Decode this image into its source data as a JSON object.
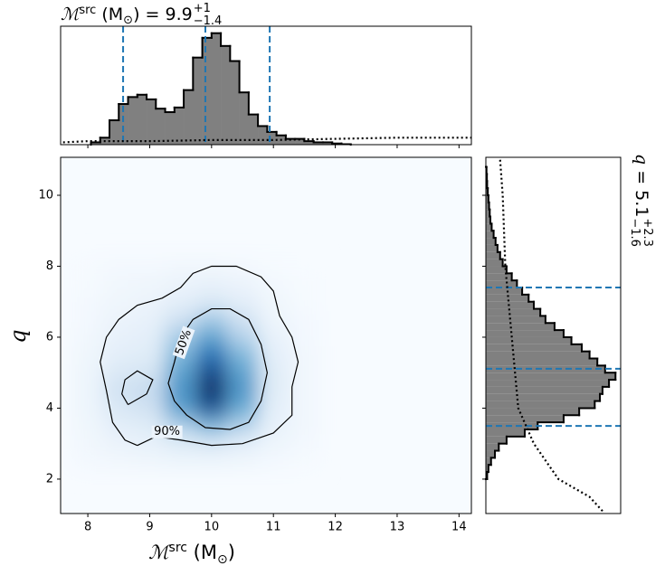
{
  "chart_data": [
    {
      "type": "heatmap",
      "xlabel": [
        "ℳ",
        "src",
        " (M",
        "⊙",
        ")"
      ],
      "ylabel": "q",
      "xlim": [
        7.56,
        14.2
      ],
      "ylim": [
        1.03,
        11.07
      ],
      "xticks": [
        8,
        9,
        10,
        11,
        12,
        13,
        14
      ],
      "yticks": [
        2,
        4,
        6,
        8,
        10
      ],
      "x": [
        8,
        8.5,
        9,
        9.5,
        10,
        10.5,
        11,
        11.5
      ],
      "y": [
        2.5,
        3,
        3.5,
        4,
        4.5,
        5,
        5.5,
        6,
        6.5,
        7,
        7.5,
        8
      ],
      "values": [
        [
          0.02,
          0.03,
          0.04,
          0.05,
          0.05,
          0.04,
          0.02,
          0.01
        ],
        [
          0.03,
          0.06,
          0.08,
          0.12,
          0.15,
          0.1,
          0.05,
          0.02
        ],
        [
          0.04,
          0.1,
          0.12,
          0.3,
          0.45,
          0.3,
          0.08,
          0.03
        ],
        [
          0.05,
          0.15,
          0.2,
          0.55,
          0.85,
          0.5,
          0.1,
          0.03
        ],
        [
          0.05,
          0.2,
          0.25,
          0.6,
          1.0,
          0.6,
          0.12,
          0.03
        ],
        [
          0.05,
          0.15,
          0.18,
          0.55,
          0.9,
          0.55,
          0.12,
          0.03
        ],
        [
          0.04,
          0.1,
          0.12,
          0.45,
          0.75,
          0.45,
          0.1,
          0.03
        ],
        [
          0.03,
          0.08,
          0.1,
          0.35,
          0.55,
          0.3,
          0.08,
          0.02
        ],
        [
          0.02,
          0.06,
          0.08,
          0.2,
          0.35,
          0.2,
          0.05,
          0.02
        ],
        [
          0.02,
          0.04,
          0.06,
          0.1,
          0.15,
          0.1,
          0.04,
          0.01
        ],
        [
          0.01,
          0.03,
          0.04,
          0.06,
          0.08,
          0.06,
          0.02,
          0.01
        ],
        [
          0.01,
          0.02,
          0.02,
          0.03,
          0.03,
          0.02,
          0.01,
          0
        ]
      ],
      "contours": [
        {
          "label": "90%",
          "paths": [
            {
              "x": [
                8.8,
                9.1,
                9.5,
                10.0,
                10.5,
                11.0,
                11.3,
                11.3,
                11.4,
                11.3,
                11.1,
                11.0,
                10.8,
                10.4,
                10.0,
                9.7,
                9.5,
                9.2,
                8.8,
                8.5,
                8.3,
                8.2,
                8.3,
                8.4,
                8.6,
                8.8
              ],
              "y": [
                2.95,
                3.2,
                3.1,
                2.95,
                3.0,
                3.3,
                3.8,
                4.6,
                5.3,
                6.0,
                6.6,
                7.3,
                7.7,
                8.0,
                8.0,
                7.8,
                7.4,
                7.1,
                6.9,
                6.5,
                6.0,
                5.3,
                4.5,
                3.6,
                3.1,
                2.95
              ]
            }
          ]
        },
        {
          "label": "50%",
          "paths": [
            {
              "x": [
                9.6,
                9.9,
                10.3,
                10.6,
                10.8,
                10.9,
                10.8,
                10.6,
                10.3,
                10.0,
                9.7,
                9.5,
                9.4,
                9.3,
                9.4,
                9.6
              ],
              "y": [
                3.8,
                3.45,
                3.4,
                3.6,
                4.2,
                5.0,
                5.8,
                6.5,
                6.8,
                6.8,
                6.5,
                6.0,
                5.3,
                4.7,
                4.2,
                3.8
              ]
            },
            {
              "x": [
                8.65,
                8.95,
                9.05,
                8.8,
                8.6,
                8.55,
                8.65
              ],
              "y": [
                4.1,
                4.4,
                4.8,
                5.05,
                4.8,
                4.4,
                4.1
              ]
            }
          ]
        }
      ]
    },
    {
      "type": "histogram",
      "title": [
        "ℳ",
        "src",
        " (M",
        "⊙",
        ") = 9.9",
        "+1",
        "−1.4"
      ],
      "color": "#808080",
      "xlim": [
        7.56,
        14.2
      ],
      "ylim": [
        0,
        1.02
      ],
      "xticks": [
        8,
        9,
        10,
        11,
        12,
        13,
        14
      ],
      "bins": [
        8.05,
        8.2,
        8.35,
        8.5,
        8.65,
        8.8,
        8.95,
        9.1,
        9.25,
        9.4,
        9.55,
        9.7,
        9.85,
        10.0,
        10.15,
        10.3,
        10.45,
        10.6,
        10.75,
        10.9,
        11.05,
        11.2,
        11.35,
        11.5,
        11.65,
        11.8,
        11.95,
        12.1,
        12.25
      ],
      "values": [
        0.02,
        0.06,
        0.21,
        0.35,
        0.41,
        0.43,
        0.39,
        0.31,
        0.28,
        0.32,
        0.47,
        0.75,
        0.92,
        0.96,
        0.85,
        0.72,
        0.45,
        0.26,
        0.16,
        0.11,
        0.08,
        0.05,
        0.05,
        0.03,
        0.02,
        0.02,
        0.01,
        0.004
      ],
      "quantiles": [
        8.57,
        9.9,
        10.94
      ],
      "prior": {
        "x": [
          7.6,
          8.0,
          9.0,
          10.0,
          11.0,
          12.0,
          13.0,
          14.2
        ],
        "values": [
          0.02,
          0.03,
          0.03,
          0.04,
          0.04,
          0.05,
          0.06,
          0.06
        ]
      }
    },
    {
      "type": "histogram",
      "orientation": "horizontal",
      "title": [
        "q",
        " = 5.1",
        "+2.3",
        "−1.6"
      ],
      "color": "#808080",
      "xlim": [
        0,
        1.04
      ],
      "ylim": [
        1.03,
        11.07
      ],
      "yticks": [
        2,
        4,
        6,
        8,
        10
      ],
      "bins": [
        2.0,
        2.2,
        2.4,
        2.6,
        2.8,
        3.0,
        3.2,
        3.4,
        3.6,
        3.8,
        4.0,
        4.2,
        4.4,
        4.6,
        4.8,
        5.0,
        5.2,
        5.4,
        5.6,
        5.8,
        6.0,
        6.2,
        6.4,
        6.6,
        6.8,
        7.0,
        7.2,
        7.4,
        7.6,
        7.8,
        8.0,
        8.2,
        8.4,
        8.6,
        8.8,
        9.0,
        9.2,
        9.4,
        9.6,
        9.8,
        10.0,
        10.2,
        10.4,
        10.6,
        10.8
      ],
      "values": [
        0.01,
        0.02,
        0.04,
        0.07,
        0.1,
        0.16,
        0.3,
        0.4,
        0.6,
        0.72,
        0.84,
        0.88,
        0.9,
        0.95,
        1.0,
        0.92,
        0.86,
        0.8,
        0.74,
        0.66,
        0.6,
        0.53,
        0.46,
        0.42,
        0.37,
        0.33,
        0.28,
        0.24,
        0.2,
        0.16,
        0.13,
        0.11,
        0.09,
        0.075,
        0.06,
        0.045,
        0.035,
        0.03,
        0.025,
        0.02,
        0.015,
        0.01,
        0.008,
        0.005
      ],
      "quantiles": [
        3.5,
        5.11,
        7.4
      ],
      "prior": {
        "q": [
          11.0,
          10.0,
          8.0,
          6.0,
          4.0,
          3.0,
          2.0,
          1.5,
          1.1
        ],
        "values": [
          0.11,
          0.13,
          0.15,
          0.2,
          0.25,
          0.37,
          0.56,
          0.8,
          0.9
        ]
      }
    }
  ]
}
